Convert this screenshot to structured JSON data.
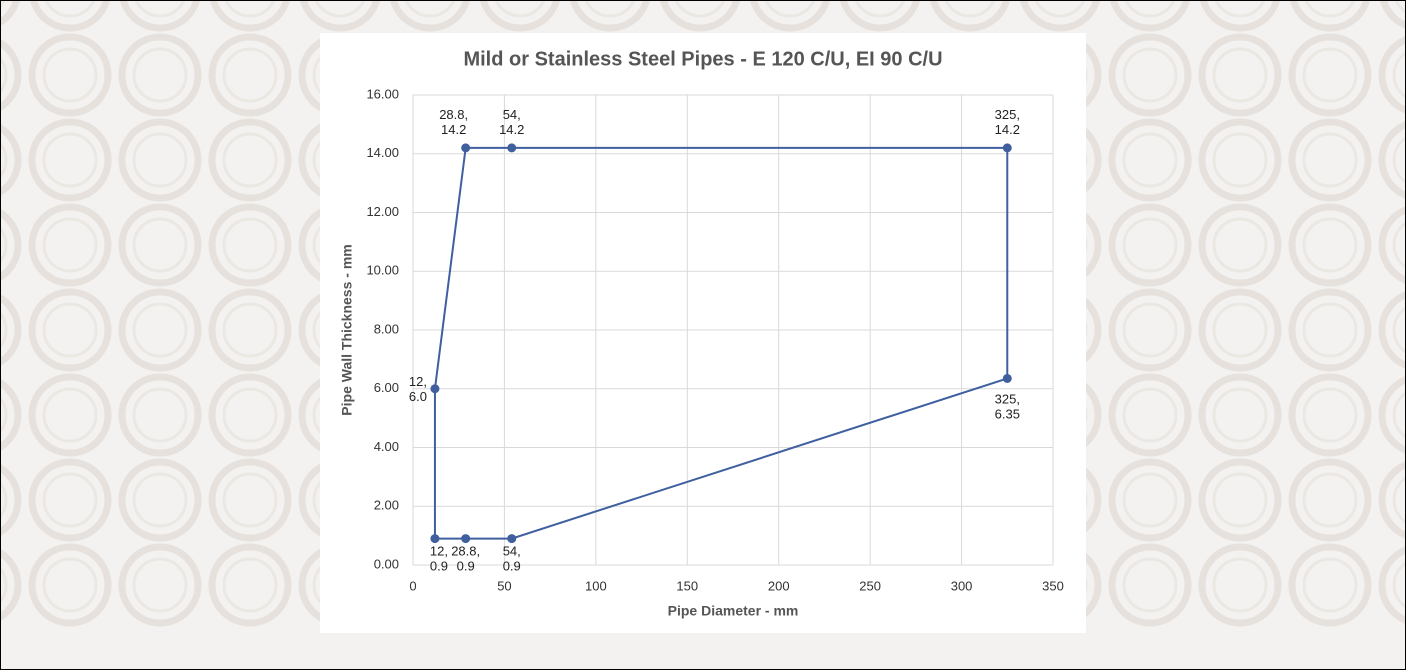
{
  "chart_data": {
    "type": "scatter-line",
    "title": "Mild or Stainless Steel Pipes - E 120 C/U, EI 90 C/U",
    "x_label": "Pipe Diameter - mm",
    "y_label": "Pipe Wall Thickness - mm",
    "x": [
      12,
      12,
      28.8,
      54,
      325,
      325,
      54,
      28.8
    ],
    "series": [
      {
        "color": "#3f5f9f",
        "values": [
          0.9,
          6.0,
          14.2,
          14.2,
          14.2,
          6.35,
          0.9,
          0.9
        ],
        "value_labels": [
          "12, 0.9",
          "12, 6.0",
          "28.8, 14.2",
          "54, 14.2",
          "325, 14.2",
          "325, 6.35",
          "54, 0.9",
          "28.8, 0.9"
        ]
      }
    ],
    "closed": true,
    "xlim": [
      0,
      350
    ],
    "xticks": [
      0,
      50,
      100,
      150,
      200,
      250,
      300,
      350
    ],
    "ylim": [
      0,
      16
    ],
    "yticks": [
      {
        "value": 0,
        "label": "0.00"
      },
      {
        "value": 2,
        "label": "2.00"
      },
      {
        "value": 4,
        "label": "4.00"
      },
      {
        "value": 6,
        "label": "6.00"
      },
      {
        "value": 8,
        "label": "8.00"
      },
      {
        "value": 10,
        "label": "10.00"
      },
      {
        "value": 12,
        "label": "12.00"
      },
      {
        "value": 14,
        "label": "14.00"
      },
      {
        "value": 16,
        "label": "16.00"
      }
    ],
    "grid": true
  }
}
